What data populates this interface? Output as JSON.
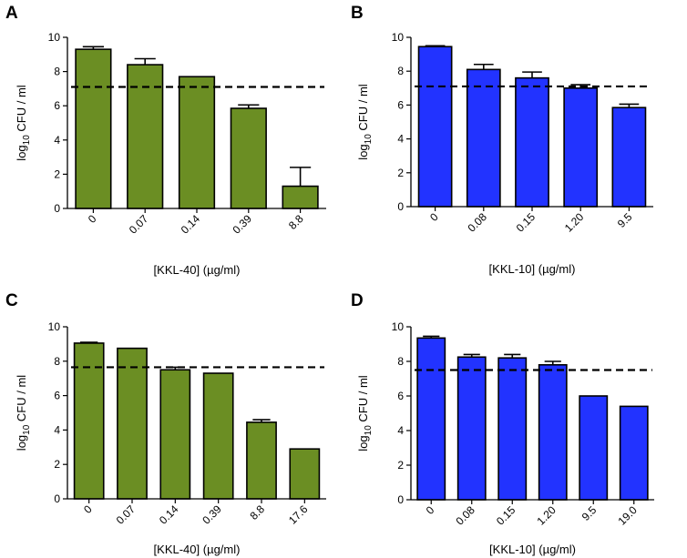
{
  "chart_data": [
    {
      "panel": "A",
      "type": "bar",
      "categories": [
        "0",
        "0.07",
        "0.14",
        "0.39",
        "8.8"
      ],
      "values": [
        9.3,
        8.4,
        7.7,
        5.85,
        1.3
      ],
      "errors": [
        0.15,
        0.35,
        0.0,
        0.2,
        1.1
      ],
      "threshold": 7.1,
      "ylim": [
        0,
        10
      ],
      "yticks": [
        "0",
        "2",
        "4",
        "6",
        "8",
        "10"
      ],
      "ylabel_main": "log",
      "ylabel_sub": "10",
      "ylabel_rest": " CFU / ml",
      "xlabel": "[KKL-40] (µg/ml)",
      "color": "#6b8e23"
    },
    {
      "panel": "B",
      "type": "bar",
      "categories": [
        "0",
        "0.08",
        "0.15",
        "1.20",
        "9.5"
      ],
      "values": [
        9.45,
        8.1,
        7.6,
        7.0,
        5.85
      ],
      "errors": [
        0.05,
        0.3,
        0.35,
        0.2,
        0.2
      ],
      "threshold": 7.1,
      "ylim": [
        0,
        10
      ],
      "yticks": [
        "0",
        "2",
        "4",
        "6",
        "8",
        "10"
      ],
      "ylabel_main": "log",
      "ylabel_sub": "10",
      "ylabel_rest": " CFU / ml",
      "xlabel": "[KKL-10] (µg/ml)",
      "color": "#2233ff"
    },
    {
      "panel": "C",
      "type": "bar",
      "categories": [
        "0",
        "0.07",
        "0.14",
        "0.39",
        "8.8",
        "17.6"
      ],
      "values": [
        9.05,
        8.75,
        7.5,
        7.3,
        4.45,
        2.9
      ],
      "errors": [
        0.05,
        0.0,
        0.15,
        0.0,
        0.15,
        0.0
      ],
      "threshold": 7.65,
      "ylim": [
        0,
        10
      ],
      "yticks": [
        "0",
        "2",
        "4",
        "6",
        "8",
        "10"
      ],
      "ylabel_main": "log",
      "ylabel_sub": "10",
      "ylabel_rest": " CFU / ml",
      "xlabel": "[KKL-40] (µg/ml)",
      "color": "#6b8e23"
    },
    {
      "panel": "D",
      "type": "bar",
      "categories": [
        "0",
        "0.08",
        "0.15",
        "1.20",
        "9.5",
        "19.0"
      ],
      "values": [
        9.35,
        8.25,
        8.2,
        7.8,
        6.0,
        5.4
      ],
      "errors": [
        0.1,
        0.15,
        0.2,
        0.2,
        0.0,
        0.0
      ],
      "threshold": 7.5,
      "ylim": [
        0,
        10
      ],
      "yticks": [
        "0",
        "2",
        "4",
        "6",
        "8",
        "10"
      ],
      "ylabel_main": "log",
      "ylabel_sub": "10",
      "ylabel_rest": " CFU / ml",
      "xlabel": "[KKL-10] (µg/ml)",
      "color": "#2233ff"
    }
  ]
}
